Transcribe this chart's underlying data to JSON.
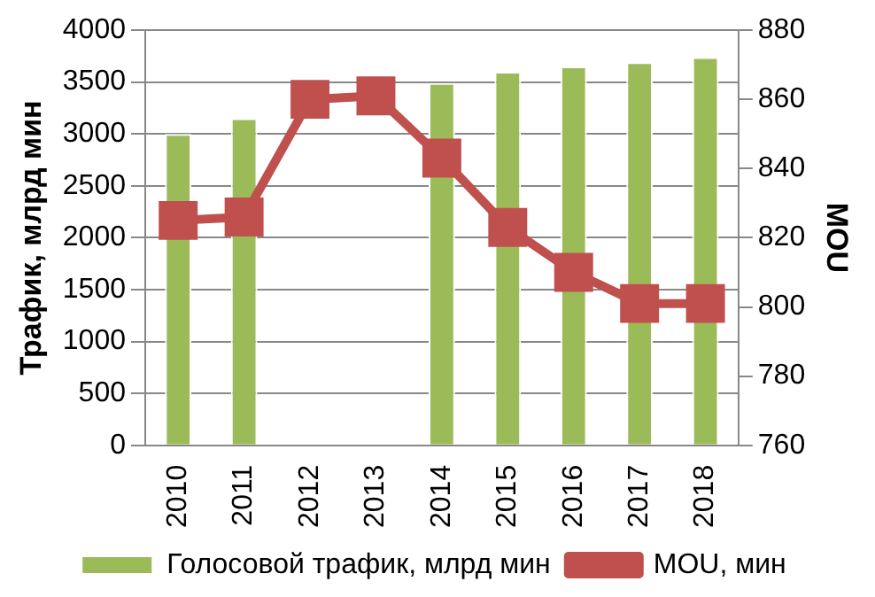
{
  "chart_data": {
    "type": "bar",
    "ylabel": "Трафик, млрд мин",
    "y2label": "MOU",
    "categories": [
      "2010",
      "2011",
      "2012",
      "2013",
      "2014",
      "2015",
      "2016",
      "2017",
      "2018"
    ],
    "series": [
      {
        "name": "Голосовой трафик, млрд мин",
        "color": "#9bbb59",
        "values": [
          3000,
          3150,
          null,
          null,
          3490,
          3600,
          3650,
          3690,
          3740
        ]
      },
      {
        "name": "MOU, мин",
        "type": "line",
        "axis": "y2",
        "color": "#c0504d",
        "marker": "square",
        "values": [
          825,
          826,
          860,
          861,
          843,
          823,
          810,
          801,
          801
        ]
      }
    ],
    "ylim": [
      0,
      4000
    ],
    "yticks": [
      0,
      500,
      1000,
      1500,
      2000,
      2500,
      3000,
      3500,
      4000
    ],
    "y2lim": [
      760,
      880
    ],
    "y2ticks": [
      760,
      780,
      800,
      820,
      840,
      860,
      880
    ],
    "grid": "y",
    "legend": "bottom"
  }
}
